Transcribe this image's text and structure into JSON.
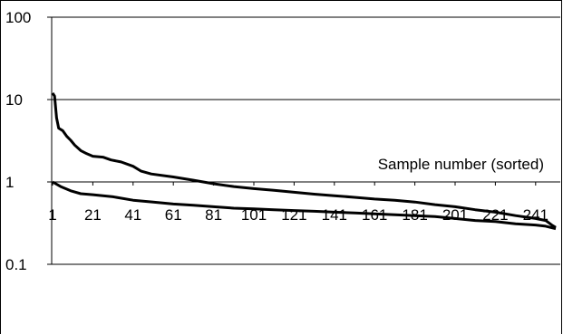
{
  "chart_data": {
    "type": "line",
    "title": "",
    "xlabel": "Sample number (sorted)",
    "ylabel": "",
    "yscale": "log",
    "ylim": [
      0.1,
      100
    ],
    "xlim": [
      1,
      251
    ],
    "grid": "horizontal",
    "legend": "none",
    "y_tick_labels": [
      "100",
      "10",
      "1",
      "0.1"
    ],
    "x_tick_labels": [
      "1",
      "21",
      "41",
      "61",
      "81",
      "101",
      "121",
      "141",
      "161",
      "181",
      "201",
      "221",
      "241"
    ],
    "series": [
      {
        "points": [
          [
            1,
            12
          ],
          [
            2,
            11
          ],
          [
            3,
            6
          ],
          [
            4,
            4.5
          ],
          [
            6,
            4.2
          ],
          [
            8,
            3.6
          ],
          [
            10,
            3.2
          ],
          [
            12,
            2.8
          ],
          [
            15,
            2.4
          ],
          [
            18,
            2.2
          ],
          [
            21,
            2.05
          ],
          [
            26,
            2.0
          ],
          [
            30,
            1.85
          ],
          [
            35,
            1.75
          ],
          [
            41,
            1.55
          ],
          [
            45,
            1.35
          ],
          [
            50,
            1.25
          ],
          [
            61,
            1.15
          ],
          [
            71,
            1.05
          ],
          [
            81,
            0.95
          ],
          [
            91,
            0.88
          ],
          [
            101,
            0.83
          ],
          [
            111,
            0.79
          ],
          [
            121,
            0.75
          ],
          [
            131,
            0.71
          ],
          [
            141,
            0.68
          ],
          [
            151,
            0.65
          ],
          [
            161,
            0.62
          ],
          [
            171,
            0.6
          ],
          [
            181,
            0.57
          ],
          [
            191,
            0.53
          ],
          [
            201,
            0.5
          ],
          [
            211,
            0.46
          ],
          [
            221,
            0.43
          ],
          [
            231,
            0.39
          ],
          [
            241,
            0.36
          ],
          [
            246,
            0.34
          ],
          [
            249,
            0.3
          ],
          [
            251,
            0.28
          ]
        ]
      },
      {
        "points": [
          [
            1,
            1.0
          ],
          [
            5,
            0.88
          ],
          [
            10,
            0.78
          ],
          [
            15,
            0.72
          ],
          [
            21,
            0.7
          ],
          [
            31,
            0.66
          ],
          [
            41,
            0.6
          ],
          [
            51,
            0.57
          ],
          [
            61,
            0.54
          ],
          [
            71,
            0.52
          ],
          [
            81,
            0.5
          ],
          [
            91,
            0.48
          ],
          [
            101,
            0.47
          ],
          [
            111,
            0.46
          ],
          [
            121,
            0.45
          ],
          [
            131,
            0.44
          ],
          [
            141,
            0.43
          ],
          [
            151,
            0.42
          ],
          [
            161,
            0.41
          ],
          [
            171,
            0.4
          ],
          [
            181,
            0.39
          ],
          [
            191,
            0.38
          ],
          [
            201,
            0.36
          ],
          [
            211,
            0.34
          ],
          [
            221,
            0.33
          ],
          [
            231,
            0.31
          ],
          [
            241,
            0.3
          ],
          [
            246,
            0.29
          ],
          [
            251,
            0.27
          ]
        ]
      }
    ]
  }
}
